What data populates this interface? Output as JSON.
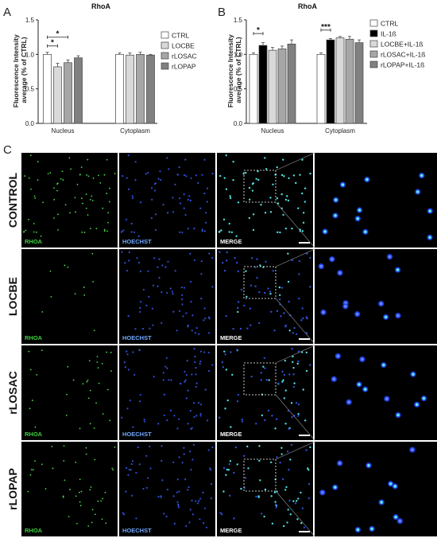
{
  "panel_letters": {
    "a": "A",
    "b": "B",
    "c": "C"
  },
  "chart_data": [
    {
      "type": "bar",
      "title": "RhoA",
      "ylabel": "Fluorescence Intensity average (% of CTRL)",
      "ylabel_lines": [
        "Fluorescence Intensity",
        "average (% of CTRL)"
      ],
      "ylim": [
        0,
        1.5
      ],
      "yticks": [
        "0.0",
        "0.5",
        "1.0",
        "1.5"
      ],
      "categories": [
        "Nucleus",
        "Cytoplasm"
      ],
      "legend_position": "right",
      "series": [
        {
          "name": "CTRL",
          "color": "#ffffff",
          "values": [
            1.0,
            1.0
          ],
          "errors": [
            0.03,
            0.02
          ]
        },
        {
          "name": "LOCBE",
          "color": "#d9d9d9",
          "values": [
            0.82,
            0.99
          ],
          "errors": [
            0.05,
            0.03
          ]
        },
        {
          "name": "rLOSAC",
          "color": "#a6a6a6",
          "values": [
            0.88,
            1.0
          ],
          "errors": [
            0.04,
            0.03
          ]
        },
        {
          "name": "rLOPAP",
          "color": "#808080",
          "values": [
            0.95,
            0.99
          ],
          "errors": [
            0.03,
            0.01
          ]
        }
      ],
      "significance": [
        {
          "category": 0,
          "from": 0,
          "to": 2,
          "label": "*"
        },
        {
          "category": 0,
          "from": 0,
          "to": 1,
          "label": "*"
        }
      ]
    },
    {
      "type": "bar",
      "title": "RhoA",
      "ylabel": "Fluorescence Intensity average (% of CTRL)",
      "ylabel_lines": [
        "Fluorescence Intensity",
        "average (% of CTRL)"
      ],
      "ylim": [
        0,
        1.5
      ],
      "yticks": [
        "0.0",
        "0.5",
        "1.0",
        "1.5"
      ],
      "categories": [
        "Nucleus",
        "Cytoplasm"
      ],
      "legend_position": "right",
      "series": [
        {
          "name": "CTRL",
          "color": "#ffffff",
          "values": [
            1.0,
            1.0
          ],
          "errors": [
            0.02,
            0.02
          ]
        },
        {
          "name": "IL-1ß",
          "color": "#000000",
          "values": [
            1.13,
            1.21
          ],
          "errors": [
            0.04,
            0.02
          ]
        },
        {
          "name": "LOCBE+IL-1ß",
          "color": "#d9d9d9",
          "values": [
            1.06,
            1.24
          ],
          "errors": [
            0.04,
            0.02
          ]
        },
        {
          "name": "rLOSAC+IL-1ß",
          "color": "#a6a6a6",
          "values": [
            1.08,
            1.22
          ],
          "errors": [
            0.04,
            0.04
          ]
        },
        {
          "name": "rLOPAP+IL-1ß",
          "color": "#808080",
          "values": [
            1.15,
            1.17
          ],
          "errors": [
            0.06,
            0.04
          ]
        }
      ],
      "significance": [
        {
          "category": 0,
          "from": 0,
          "to": 1,
          "label": "*"
        },
        {
          "category": 1,
          "from": 0,
          "to": 1,
          "label": "***"
        }
      ]
    }
  ],
  "micrographs": {
    "rows": [
      "CONTROL",
      "LOCBE",
      "rLOSAC",
      "rLOPAP"
    ],
    "channels": [
      {
        "label": "RHOA",
        "color": "#3ecf3e"
      },
      {
        "label": "HOECHST",
        "color": "#6fa8ff"
      },
      {
        "label": "MERGE",
        "color": "#ffffff"
      }
    ]
  }
}
